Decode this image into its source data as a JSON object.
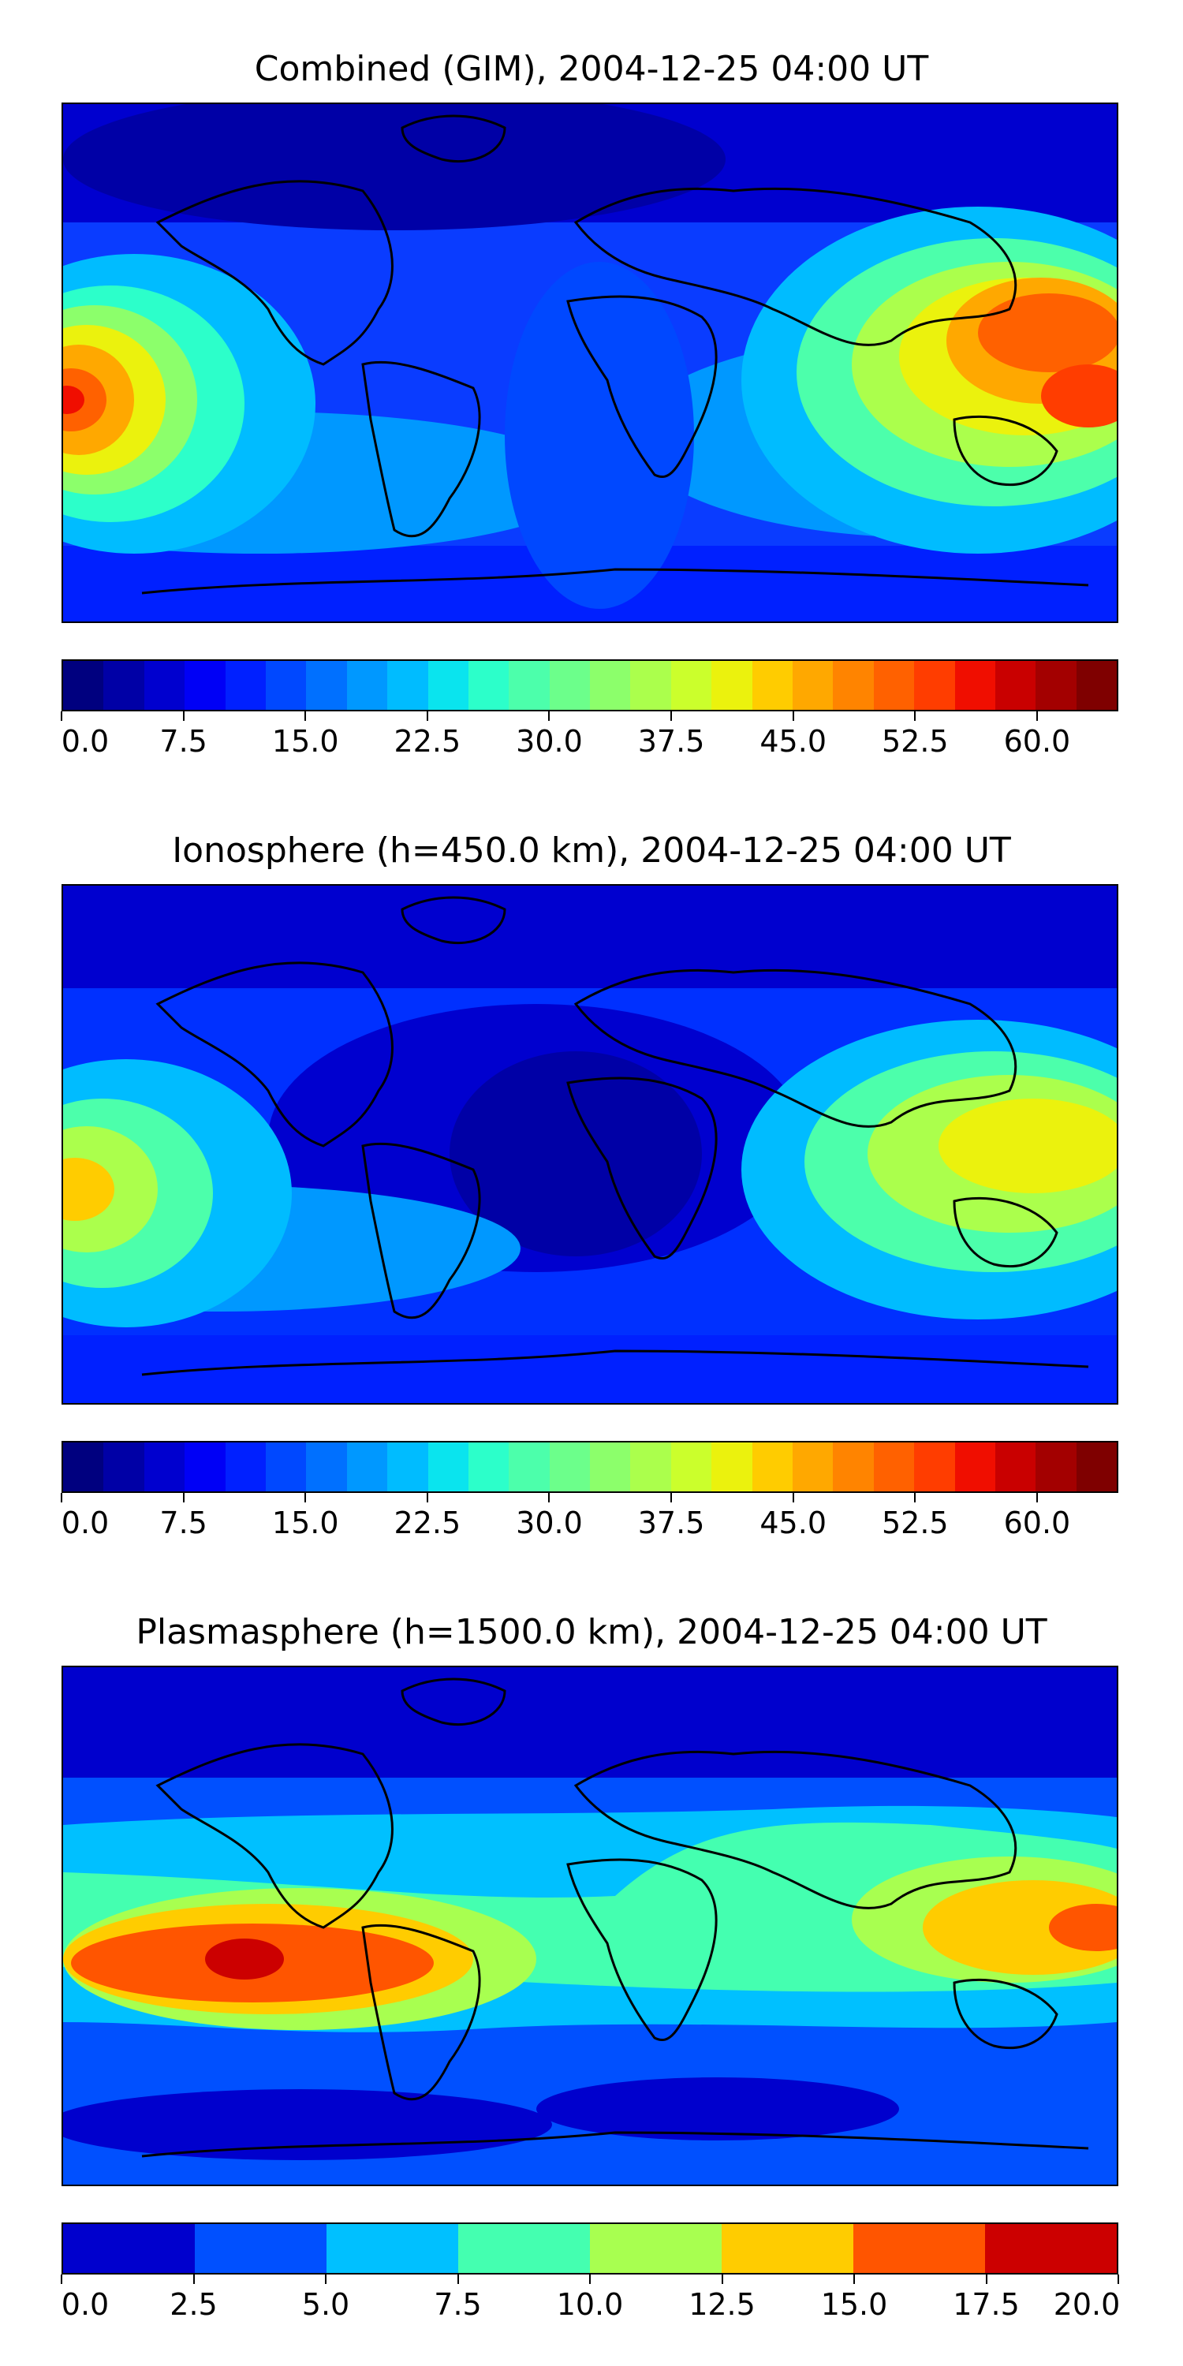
{
  "panels": [
    {
      "title": "Combined (GIM), 2004-12-25 04:00 UT",
      "colorbar": {
        "levels": 26,
        "colors": [
          "#00007f",
          "#0000a6",
          "#0000cf",
          "#0000f6",
          "#0020ff",
          "#0048ff",
          "#0070ff",
          "#0098ff",
          "#00bcff",
          "#0ae4ee",
          "#2cffca",
          "#4cffab",
          "#6cff8b",
          "#8cff6b",
          "#abff4c",
          "#cbff2c",
          "#ebf20d",
          "#ffcc00",
          "#ffa800",
          "#ff8400",
          "#ff6100",
          "#ff3d00",
          "#f00e00",
          "#c90000",
          "#a30000",
          "#7f0000"
        ],
        "tick_labels": [
          "0.0",
          "7.5",
          "15.0",
          "22.5",
          "30.0",
          "37.5",
          "45.0",
          "52.5",
          "60.0"
        ],
        "tick_values": [
          0,
          7.5,
          15,
          22.5,
          30,
          37.5,
          45,
          52.5,
          60
        ],
        "range": [
          0,
          65
        ]
      },
      "background_color": "#0a3cff"
    },
    {
      "title": "Ionosphere  (h=450.0 km), 2004-12-25 04:00 UT",
      "colorbar": {
        "levels": 26,
        "colors": [
          "#00007f",
          "#0000a6",
          "#0000cf",
          "#0000f6",
          "#0020ff",
          "#0048ff",
          "#0070ff",
          "#0098ff",
          "#00bcff",
          "#0ae4ee",
          "#2cffca",
          "#4cffab",
          "#6cff8b",
          "#8cff6b",
          "#abff4c",
          "#cbff2c",
          "#ebf20d",
          "#ffcc00",
          "#ffa800",
          "#ff8400",
          "#ff6100",
          "#ff3d00",
          "#f00e00",
          "#c90000",
          "#a30000",
          "#7f0000"
        ],
        "tick_labels": [
          "0.0",
          "7.5",
          "15.0",
          "22.5",
          "30.0",
          "37.5",
          "45.0",
          "52.5",
          "60.0"
        ],
        "tick_values": [
          0,
          7.5,
          15,
          22.5,
          30,
          37.5,
          45,
          52.5,
          60
        ],
        "range": [
          0,
          65
        ]
      },
      "background_color": "#0030ff"
    },
    {
      "title": "Plasmasphere (h=1500.0 km), 2004-12-25 04:00 UT",
      "colorbar": {
        "levels": 8,
        "colors": [
          "#0000cd",
          "#0050ff",
          "#00c0ff",
          "#44ffb0",
          "#a8ff50",
          "#ffcc00",
          "#ff5500",
          "#cc0000"
        ],
        "tick_labels": [
          "0.0",
          "2.5",
          "5.0",
          "7.5",
          "10.0",
          "12.5",
          "15.0",
          "17.5",
          "20.0"
        ],
        "tick_values": [
          0,
          2.5,
          5,
          7.5,
          10,
          12.5,
          15,
          17.5,
          20
        ],
        "range": [
          0,
          20
        ]
      },
      "background_color": "#00c0ff"
    }
  ]
}
